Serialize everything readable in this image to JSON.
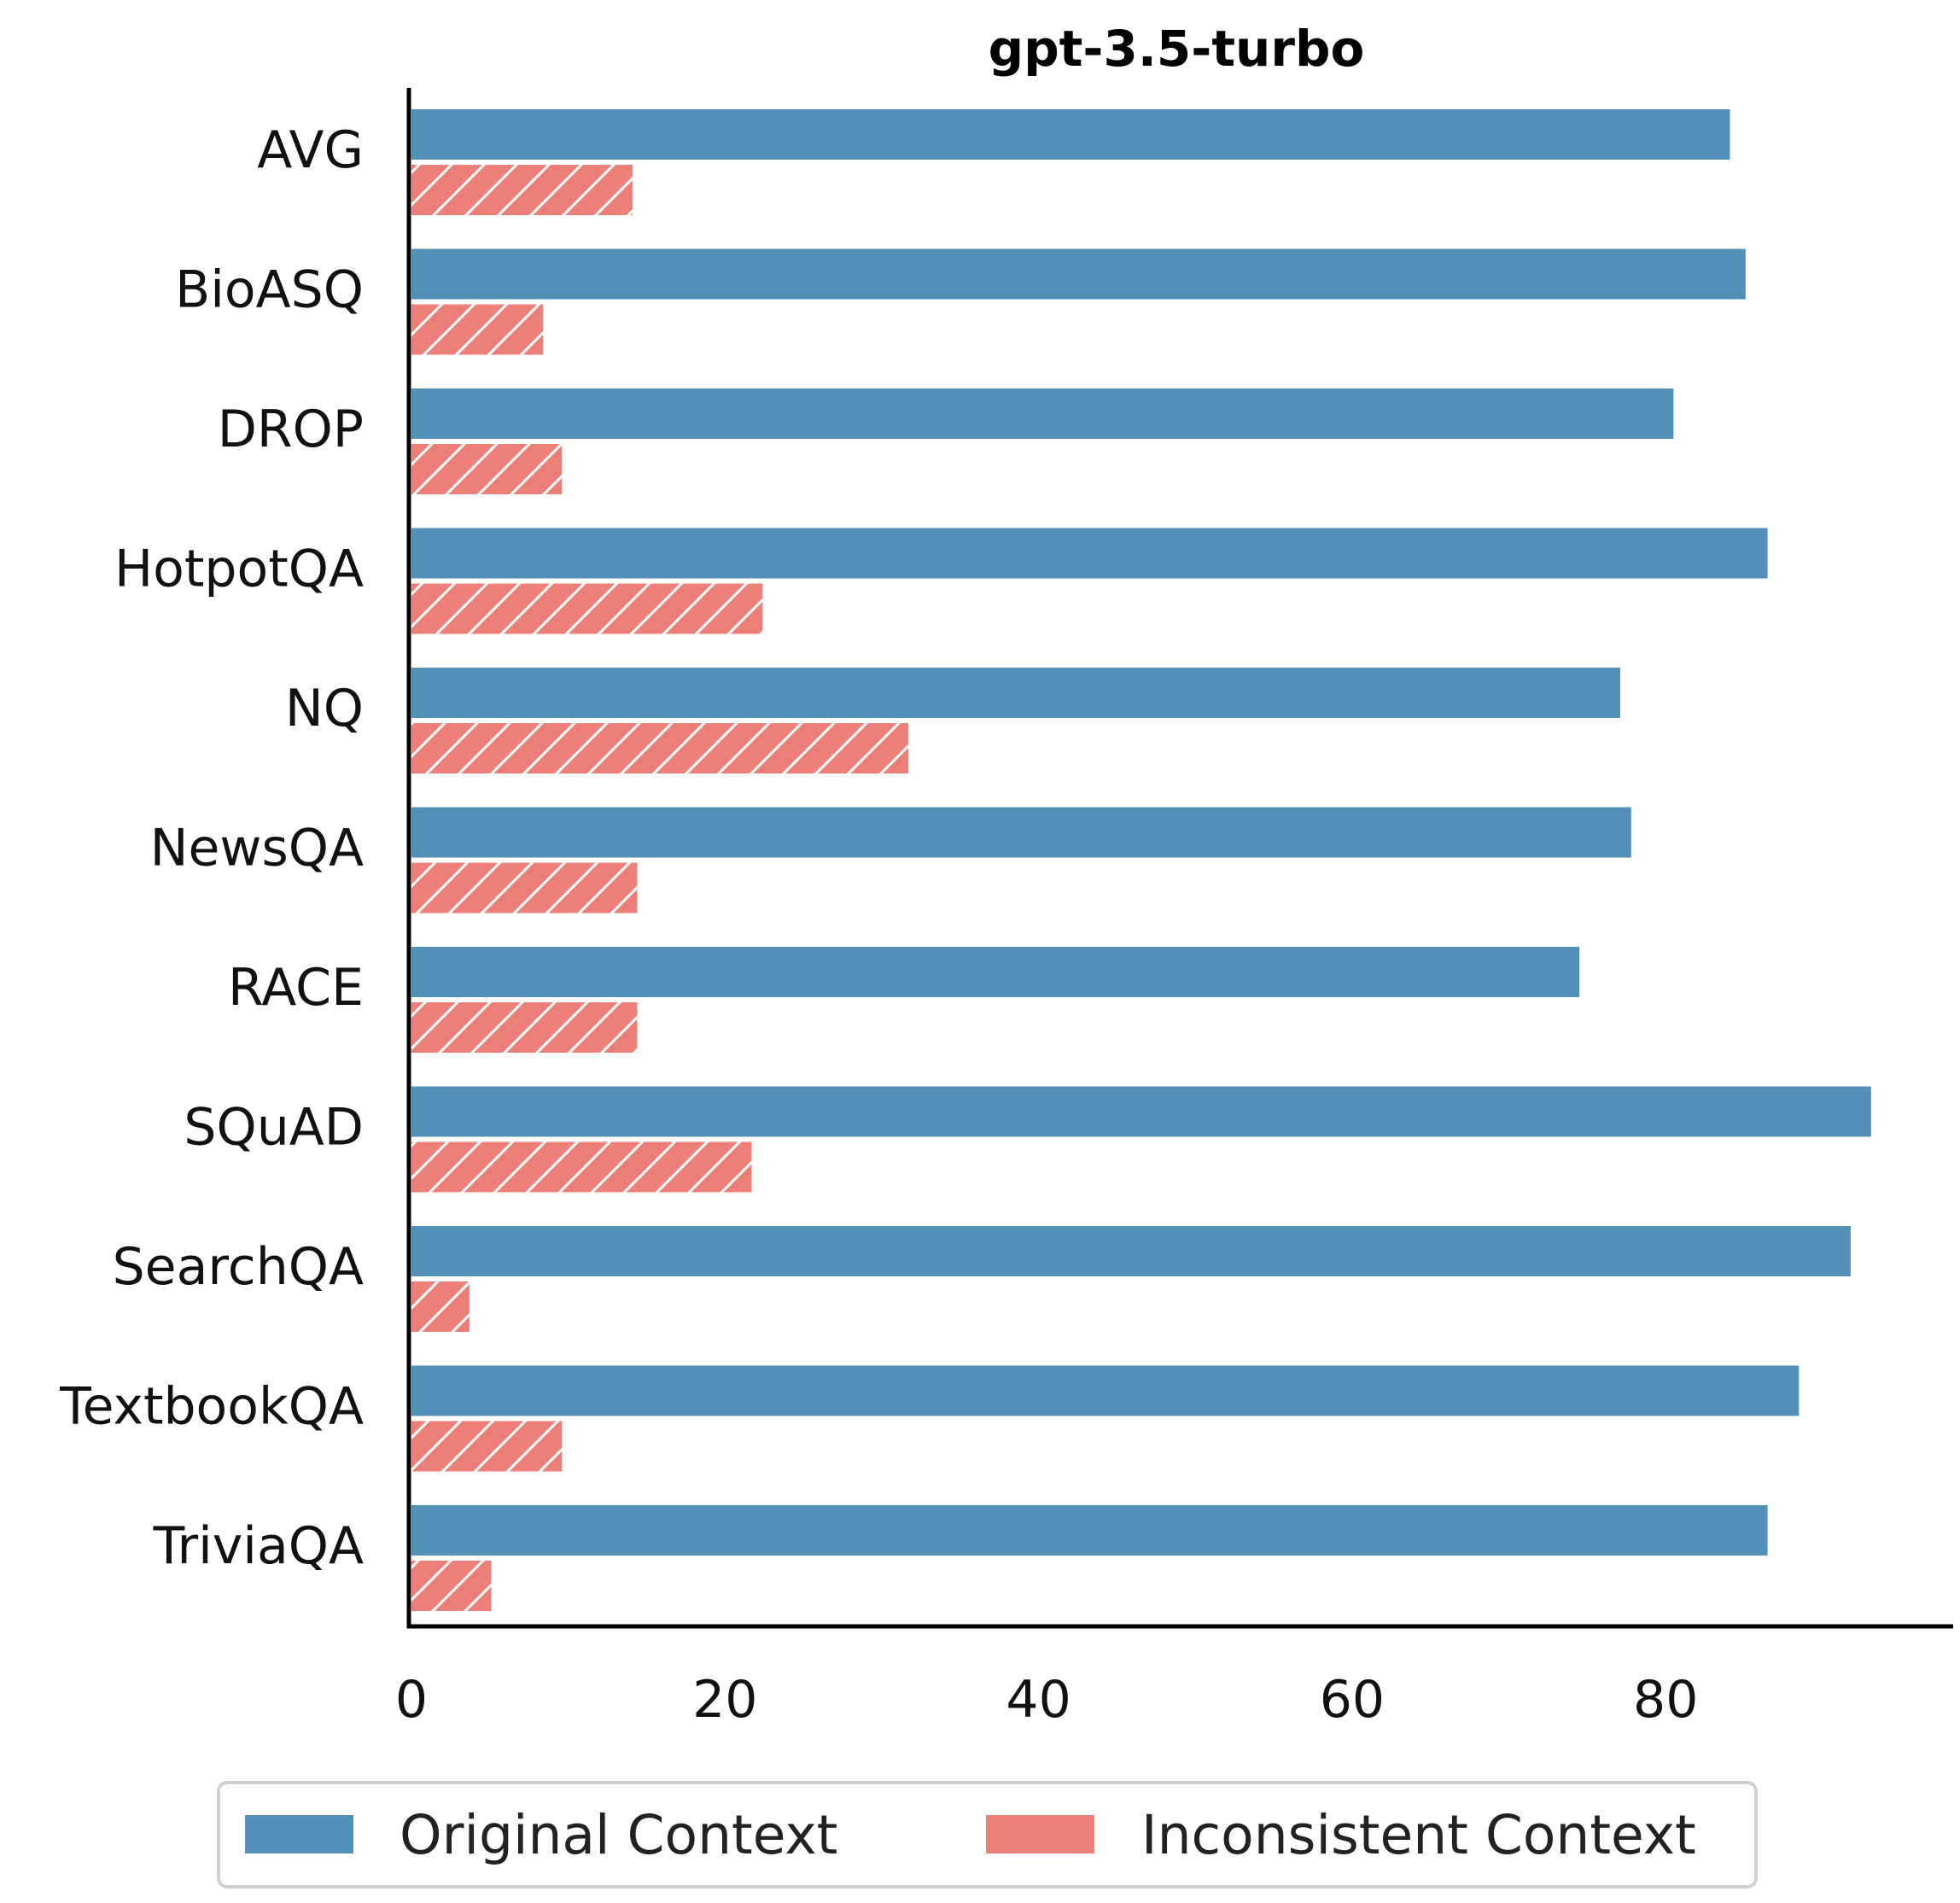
{
  "chart_data": {
    "type": "bar",
    "orientation": "horizontal",
    "title": "gpt-3.5-turbo",
    "xlabel": "",
    "ylabel": "",
    "categories": [
      "AVG",
      "BioASQ",
      "DROP",
      "HotpotQA",
      "NQ",
      "NewsQA",
      "RACE",
      "SQuAD",
      "SearchQA",
      "TextbookQA",
      "TriviaQA"
    ],
    "series": [
      {
        "name": "Original Context",
        "color": "#5390b8",
        "values": [
          84.1,
          85.1,
          80.5,
          86.5,
          77.1,
          77.8,
          74.5,
          93.1,
          91.8,
          88.5,
          86.5
        ]
      },
      {
        "name": "Inconsistent Context",
        "color": "#ec8078",
        "hatch": "diagonal",
        "values": [
          14.1,
          8.4,
          9.6,
          22.4,
          31.7,
          14.4,
          14.4,
          21.7,
          3.7,
          9.6,
          5.1
        ]
      }
    ],
    "xticks": [
      0,
      20,
      40,
      60,
      80
    ],
    "xlim": [
      0,
      98.3
    ],
    "grid": false,
    "legend_position": "bottom-center"
  }
}
